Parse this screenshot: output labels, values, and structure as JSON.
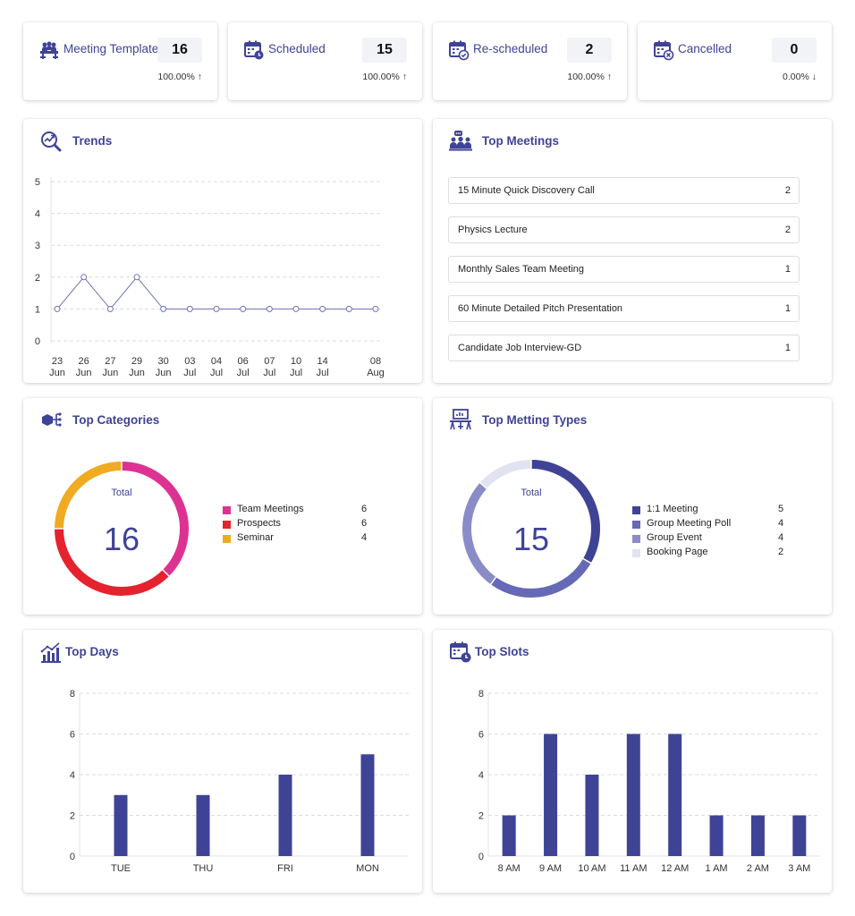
{
  "colors": {
    "accent": "#3f4396",
    "pink": "#de3293",
    "red": "#e5222e",
    "yellow": "#f0ab22"
  },
  "stats": [
    {
      "icon": "meeting-template-icon",
      "title": "Meeting Template",
      "value": "16",
      "change": "100.00% ↑"
    },
    {
      "icon": "calendar-clock-icon",
      "title": "Scheduled",
      "value": "15",
      "change": "100.00% ↑"
    },
    {
      "icon": "calendar-check-icon",
      "title": "Re-scheduled",
      "value": "2",
      "change": "100.00% ↑"
    },
    {
      "icon": "calendar-cancel-icon",
      "title": "Cancelled",
      "value": "0",
      "change": "0.00% ↓"
    }
  ],
  "trends": {
    "title": "Trends",
    "chart_data": {
      "type": "line",
      "x": [
        [
          "23",
          "Jun"
        ],
        [
          "26",
          "Jun"
        ],
        [
          "27",
          "Jun"
        ],
        [
          "29",
          "Jun"
        ],
        [
          "30",
          "Jun"
        ],
        [
          "03",
          "Jul"
        ],
        [
          "04",
          "Jul"
        ],
        [
          "06",
          "Jul"
        ],
        [
          "07",
          "Jul"
        ],
        [
          "10",
          "Jul"
        ],
        [
          "14",
          "Jul"
        ],
        [
          "",
          ""
        ],
        [
          "08",
          "Aug"
        ]
      ],
      "values": [
        1,
        2,
        1,
        2,
        1,
        1,
        1,
        1,
        1,
        1,
        1,
        1,
        1
      ],
      "ylim": [
        0,
        5
      ],
      "yticks": [
        0,
        1,
        2,
        3,
        4,
        5
      ],
      "grid": true
    }
  },
  "top_meetings": {
    "title": "Top Meetings",
    "items": [
      {
        "name": "15 Minute Quick Discovery Call",
        "count": "2"
      },
      {
        "name": "Physics Lecture",
        "count": "2"
      },
      {
        "name": "Monthly Sales Team Meeting",
        "count": "1"
      },
      {
        "name": "60 Minute Detailed Pitch Presentation",
        "count": "1"
      },
      {
        "name": "Candidate Job Interview-GD",
        "count": "1"
      }
    ]
  },
  "top_categories": {
    "title": "Top Categories",
    "total_label": "Total",
    "total": "16",
    "chart_data": {
      "type": "pie",
      "labels": [
        "Team Meetings",
        "Prospects",
        "Seminar"
      ],
      "values": [
        6,
        6,
        4
      ],
      "colors": [
        "#de3293",
        "#e5222e",
        "#f0ab22"
      ]
    },
    "legend": [
      {
        "label": "Team Meetings",
        "count": "6"
      },
      {
        "label": "Prospects",
        "count": "6"
      },
      {
        "label": "Seminar",
        "count": "4"
      }
    ]
  },
  "top_types": {
    "title": "Top Metting Types",
    "total_label": "Total",
    "total": "15",
    "chart_data": {
      "type": "pie",
      "labels": [
        "1:1 Meeting",
        "Group Meeting Poll",
        "Group Event",
        "Booking Page"
      ],
      "values": [
        5,
        4,
        4,
        2
      ],
      "colors": [
        "#3f4396",
        "#6669b5",
        "#8a8cc8",
        "#e2e3f1"
      ]
    },
    "legend": [
      {
        "label": "1:1 Meeting",
        "count": "5"
      },
      {
        "label": "Group Meeting Poll",
        "count": "4"
      },
      {
        "label": "Group Event",
        "count": "4"
      },
      {
        "label": "Booking Page",
        "count": "2"
      }
    ]
  },
  "top_days": {
    "title": "Top Days",
    "chart_data": {
      "type": "bar",
      "categories": [
        "TUE",
        "THU",
        "FRI",
        "MON"
      ],
      "values": [
        3,
        3,
        4,
        5
      ],
      "ylim": [
        0,
        8
      ],
      "yticks": [
        0,
        2,
        4,
        6,
        8
      ],
      "grid": true
    }
  },
  "top_slots": {
    "title": "Top Slots",
    "chart_data": {
      "type": "bar",
      "categories": [
        "8 AM",
        "9 AM",
        "10 AM",
        "11 AM",
        "12 AM",
        "1 AM",
        "2 AM",
        "3 AM"
      ],
      "values": [
        2,
        6,
        4,
        6,
        6,
        2,
        2,
        2
      ],
      "ylim": [
        0,
        8
      ],
      "yticks": [
        0,
        2,
        4,
        6,
        8
      ],
      "grid": true
    }
  }
}
